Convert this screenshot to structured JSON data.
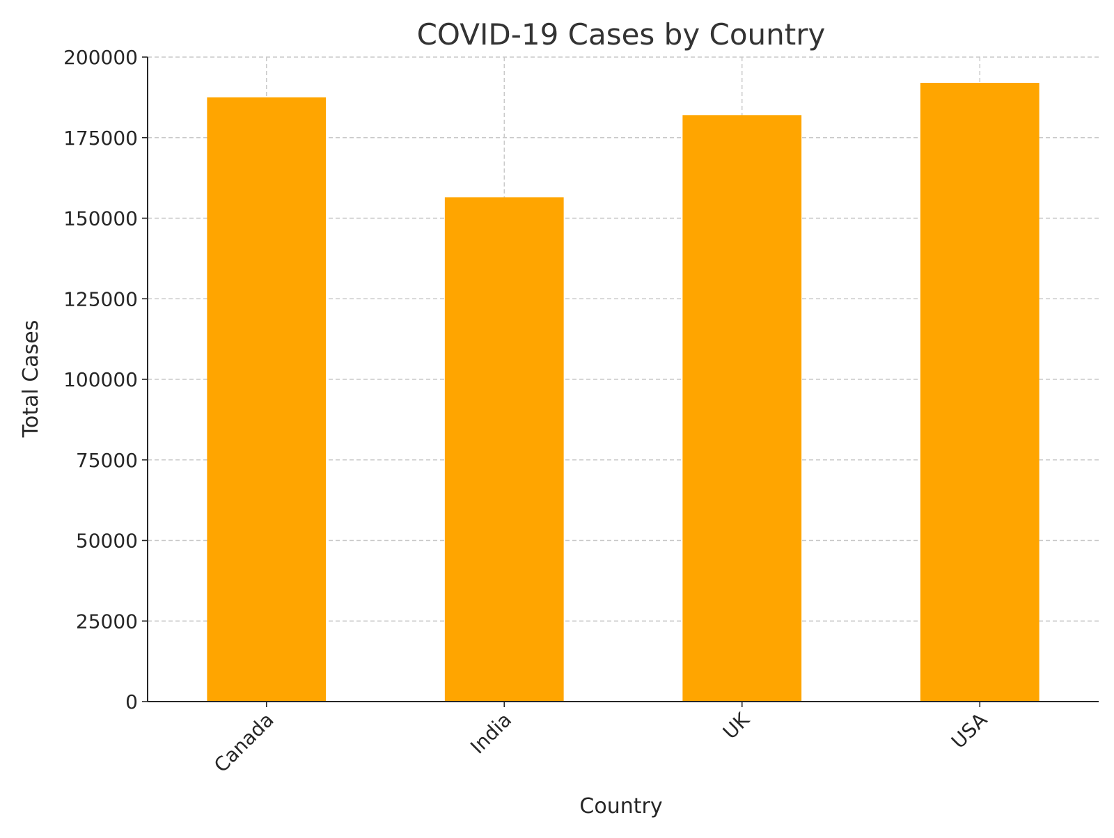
{
  "chart_data": {
    "type": "bar",
    "title": "COVID-19 Cases by Country",
    "xlabel": "Country",
    "ylabel": "Total Cases",
    "categories": [
      "Canada",
      "India",
      "UK",
      "USA"
    ],
    "values": [
      187500,
      156500,
      182000,
      192000
    ],
    "ylim": [
      0,
      200000
    ],
    "yticks": [
      0,
      25000,
      50000,
      75000,
      100000,
      125000,
      150000,
      175000,
      200000
    ],
    "ytick_labels": [
      "0",
      "25000",
      "50000",
      "75000",
      "100000",
      "125000",
      "150000",
      "175000",
      "200000"
    ],
    "grid": true,
    "bar_color": "#FFA500",
    "grid_color": "#C8C8C8",
    "axis_color": "#262626",
    "title_color": "#333333"
  }
}
